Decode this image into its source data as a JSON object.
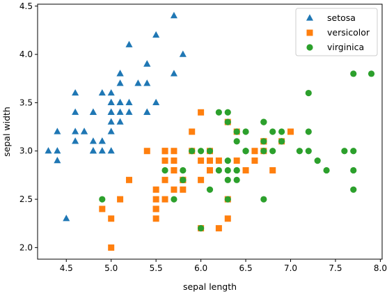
{
  "chart_data": {
    "type": "scatter",
    "xlabel": "sepal length",
    "ylabel": "sepal width",
    "xlim": [
      4.18,
      8.02
    ],
    "ylim": [
      1.88,
      4.52
    ],
    "xticks": [
      "4.5",
      "5.0",
      "5.5",
      "6.0",
      "6.5",
      "7.0",
      "7.5",
      "8.0"
    ],
    "yticks": [
      "2.0",
      "2.5",
      "3.0",
      "3.5",
      "4.0",
      "4.5"
    ],
    "grid": false,
    "legend_position": "top-right",
    "series": [
      {
        "name": "setosa",
        "marker": "triangle",
        "color": "#1f77b4",
        "points": [
          [
            5.1,
            3.5
          ],
          [
            4.9,
            3.0
          ],
          [
            4.7,
            3.2
          ],
          [
            4.6,
            3.1
          ],
          [
            5.0,
            3.6
          ],
          [
            5.4,
            3.9
          ],
          [
            4.6,
            3.4
          ],
          [
            5.0,
            3.4
          ],
          [
            4.4,
            2.9
          ],
          [
            4.9,
            3.1
          ],
          [
            5.4,
            3.7
          ],
          [
            4.8,
            3.4
          ],
          [
            4.8,
            3.0
          ],
          [
            4.3,
            3.0
          ],
          [
            5.8,
            4.0
          ],
          [
            5.7,
            4.4
          ],
          [
            5.4,
            3.9
          ],
          [
            5.1,
            3.5
          ],
          [
            5.7,
            3.8
          ],
          [
            5.1,
            3.8
          ],
          [
            5.4,
            3.4
          ],
          [
            5.1,
            3.7
          ],
          [
            4.6,
            3.6
          ],
          [
            5.1,
            3.3
          ],
          [
            4.8,
            3.4
          ],
          [
            5.0,
            3.0
          ],
          [
            5.0,
            3.4
          ],
          [
            5.2,
            3.5
          ],
          [
            5.2,
            3.4
          ],
          [
            4.7,
            3.2
          ],
          [
            4.8,
            3.1
          ],
          [
            5.4,
            3.4
          ],
          [
            5.2,
            4.1
          ],
          [
            5.5,
            4.2
          ],
          [
            4.9,
            3.1
          ],
          [
            5.0,
            3.2
          ],
          [
            5.5,
            3.5
          ],
          [
            4.9,
            3.6
          ],
          [
            4.4,
            3.0
          ],
          [
            5.1,
            3.4
          ],
          [
            5.0,
            3.5
          ],
          [
            4.5,
            2.3
          ],
          [
            4.4,
            3.2
          ],
          [
            5.0,
            3.5
          ],
          [
            5.1,
            3.8
          ],
          [
            4.8,
            3.0
          ],
          [
            5.1,
            3.8
          ],
          [
            4.6,
            3.2
          ],
          [
            5.3,
            3.7
          ],
          [
            5.0,
            3.3
          ]
        ]
      },
      {
        "name": "versicolor",
        "marker": "square",
        "color": "#ff7f0e",
        "points": [
          [
            7.0,
            3.2
          ],
          [
            6.4,
            3.2
          ],
          [
            6.9,
            3.1
          ],
          [
            5.5,
            2.3
          ],
          [
            6.5,
            2.8
          ],
          [
            5.7,
            2.8
          ],
          [
            6.3,
            3.3
          ],
          [
            4.9,
            2.4
          ],
          [
            6.6,
            2.9
          ],
          [
            5.2,
            2.7
          ],
          [
            5.0,
            2.0
          ],
          [
            5.9,
            3.0
          ],
          [
            6.0,
            2.2
          ],
          [
            6.1,
            2.9
          ],
          [
            5.6,
            2.9
          ],
          [
            6.7,
            3.1
          ],
          [
            5.6,
            3.0
          ],
          [
            5.8,
            2.7
          ],
          [
            6.2,
            2.2
          ],
          [
            5.6,
            2.5
          ],
          [
            5.9,
            3.2
          ],
          [
            6.1,
            2.8
          ],
          [
            6.3,
            2.5
          ],
          [
            6.1,
            2.8
          ],
          [
            6.4,
            2.9
          ],
          [
            6.6,
            3.0
          ],
          [
            6.8,
            2.8
          ],
          [
            6.7,
            3.0
          ],
          [
            6.0,
            2.9
          ],
          [
            5.7,
            2.6
          ],
          [
            5.5,
            2.4
          ],
          [
            5.5,
            2.4
          ],
          [
            5.8,
            2.7
          ],
          [
            6.0,
            2.7
          ],
          [
            5.4,
            3.0
          ],
          [
            6.0,
            3.4
          ],
          [
            6.7,
            3.1
          ],
          [
            6.3,
            2.3
          ],
          [
            5.6,
            3.0
          ],
          [
            5.5,
            2.5
          ],
          [
            5.5,
            2.6
          ],
          [
            6.1,
            3.0
          ],
          [
            5.8,
            2.6
          ],
          [
            5.0,
            2.3
          ],
          [
            5.6,
            2.7
          ],
          [
            5.7,
            3.0
          ],
          [
            5.7,
            2.9
          ],
          [
            6.2,
            2.9
          ],
          [
            5.1,
            2.5
          ],
          [
            5.7,
            2.8
          ]
        ]
      },
      {
        "name": "virginica",
        "marker": "circle",
        "color": "#2ca02c",
        "points": [
          [
            6.3,
            3.3
          ],
          [
            5.8,
            2.7
          ],
          [
            7.1,
            3.0
          ],
          [
            6.3,
            2.9
          ],
          [
            6.5,
            3.0
          ],
          [
            7.6,
            3.0
          ],
          [
            4.9,
            2.5
          ],
          [
            7.3,
            2.9
          ],
          [
            6.7,
            2.5
          ],
          [
            7.2,
            3.6
          ],
          [
            6.5,
            3.2
          ],
          [
            6.4,
            2.7
          ],
          [
            6.8,
            3.0
          ],
          [
            5.7,
            2.5
          ],
          [
            5.8,
            2.8
          ],
          [
            6.4,
            3.2
          ],
          [
            6.5,
            3.0
          ],
          [
            7.7,
            3.8
          ],
          [
            7.7,
            2.6
          ],
          [
            6.0,
            2.2
          ],
          [
            6.9,
            3.2
          ],
          [
            5.6,
            2.8
          ],
          [
            7.7,
            2.8
          ],
          [
            6.3,
            2.7
          ],
          [
            6.7,
            3.3
          ],
          [
            7.2,
            3.2
          ],
          [
            6.2,
            2.8
          ],
          [
            6.1,
            3.0
          ],
          [
            6.4,
            2.8
          ],
          [
            7.2,
            3.0
          ],
          [
            7.4,
            2.8
          ],
          [
            7.9,
            3.8
          ],
          [
            6.4,
            2.8
          ],
          [
            6.3,
            2.8
          ],
          [
            6.1,
            2.6
          ],
          [
            7.7,
            3.0
          ],
          [
            6.3,
            3.4
          ],
          [
            6.4,
            3.1
          ],
          [
            6.0,
            3.0
          ],
          [
            6.9,
            3.1
          ],
          [
            6.7,
            3.1
          ],
          [
            6.9,
            3.1
          ],
          [
            5.8,
            2.7
          ],
          [
            6.8,
            3.2
          ],
          [
            6.7,
            3.3
          ],
          [
            6.7,
            3.0
          ],
          [
            6.3,
            2.5
          ],
          [
            6.5,
            3.0
          ],
          [
            6.2,
            3.4
          ],
          [
            5.9,
            3.0
          ]
        ]
      }
    ]
  }
}
